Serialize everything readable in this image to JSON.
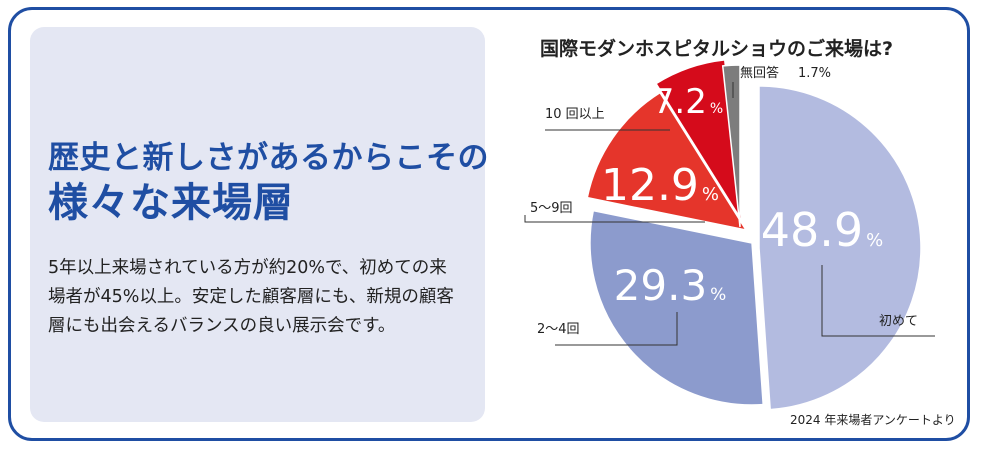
{
  "headline": {
    "line1": "歴史と新しさがあるからこその",
    "line2": "様々な来場層"
  },
  "body": {
    "lines": [
      "5年以上来場されている方が約20%で、初めての来",
      "場者が45%以上。安定した顧客層にも、新規の顧客",
      "層にも出会えるバランスの良い展示会です。"
    ]
  },
  "colors": {
    "frame": "#1f4ea3",
    "panel": "#e4e7f3",
    "first_time": "#b3bbe0",
    "two_to_four": "#8c9bcd",
    "five_to_nine": "#e5352b",
    "ten_plus": "#d50b1b",
    "no_answer": "#7d7d7d"
  },
  "chart_data": {
    "type": "pie",
    "title": "国際モダンホスピタルショウのご来場は?",
    "unit": "%",
    "slices": [
      {
        "label": "初めて",
        "value": 48.9,
        "value_label": "48.9",
        "color": "#b3bbe0"
      },
      {
        "label": "2～4回",
        "value": 29.3,
        "value_label": "29.3",
        "color": "#8c9bcd"
      },
      {
        "label": "5～9回",
        "value": 12.9,
        "value_label": "12.9",
        "color": "#e5352b"
      },
      {
        "label": "10 回以上",
        "value": 7.2,
        "value_label": "7.2",
        "color": "#d50b1b"
      },
      {
        "label": "無回答",
        "value": 1.7,
        "value_label": "1.7%",
        "color": "#7d7d7d"
      }
    ],
    "source": "2024 年来場者アンケートより"
  }
}
